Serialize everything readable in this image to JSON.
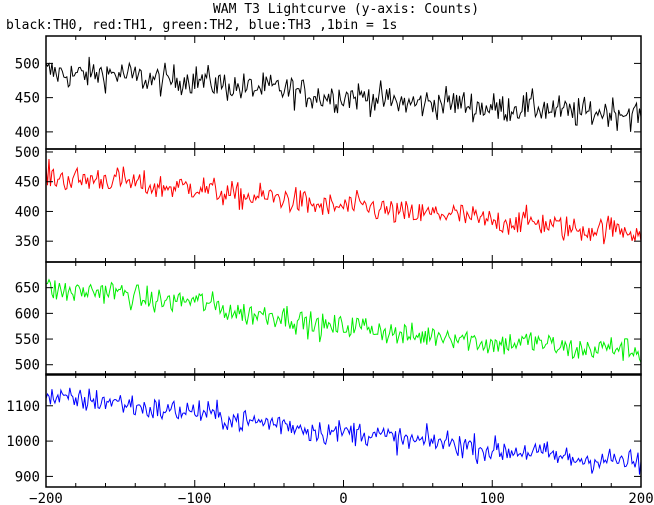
{
  "title": "WAM T3 Lightcurve (y-axis: Counts)",
  "subtitle": "black:TH0, red:TH1, green:TH2, blue:TH3 ,1bin = 1s",
  "chart_data": {
    "type": "line",
    "title": "WAM T3 Lightcurve (y-axis: Counts)",
    "subtitle": "black:TH0, red:TH1, green:TH2, blue:TH3 ,1bin = 1s",
    "xlim": [
      -200,
      200
    ],
    "x_ticks": [
      -200,
      -100,
      0,
      100,
      200
    ],
    "bin_seconds": 1,
    "grid": false,
    "legend": "subtitle",
    "panels": [
      {
        "name": "TH0",
        "color": "#000000",
        "ylim": [
          375,
          540
        ],
        "y_ticks": [
          400,
          450,
          500
        ],
        "start": 488,
        "end": 425,
        "hump": 6,
        "noise": 22,
        "x": [
          -200,
          -175,
          -150,
          -125,
          -100,
          -75,
          -50,
          -25,
          0,
          25,
          50,
          75,
          100,
          125,
          150,
          175,
          200
        ],
        "values": [
          488,
          485,
          482,
          478,
          474,
          468,
          462,
          456,
          452,
          447,
          443,
          440,
          437,
          434,
          431,
          428,
          425
        ]
      },
      {
        "name": "TH1",
        "color": "#ff0000",
        "ylim": [
          315,
          505
        ],
        "y_ticks": [
          350,
          400,
          450,
          500
        ],
        "start": 460,
        "end": 365,
        "hump": 8,
        "noise": 22,
        "x": [
          -200,
          -175,
          -150,
          -125,
          -100,
          -75,
          -50,
          -25,
          0,
          25,
          50,
          75,
          100,
          125,
          150,
          175,
          200
        ],
        "values": [
          460,
          455,
          450,
          444,
          438,
          430,
          422,
          414,
          408,
          402,
          397,
          392,
          386,
          380,
          374,
          369,
          365
        ]
      },
      {
        "name": "TH2",
        "color": "#00ee00",
        "ylim": [
          480,
          700
        ],
        "y_ticks": [
          500,
          550,
          600,
          650
        ],
        "start": 648,
        "end": 525,
        "hump": 12,
        "noise": 24,
        "x": [
          -200,
          -175,
          -150,
          -125,
          -100,
          -75,
          -50,
          -25,
          0,
          25,
          50,
          75,
          100,
          125,
          150,
          175,
          200
        ],
        "values": [
          648,
          645,
          636,
          628,
          620,
          608,
          595,
          582,
          574,
          566,
          558,
          552,
          545,
          540,
          535,
          530,
          525
        ]
      },
      {
        "name": "TH3",
        "color": "#0000ff",
        "ylim": [
          870,
          1190
        ],
        "y_ticks": [
          900,
          1000,
          1100
        ],
        "start": 1125,
        "end": 935,
        "hump": 10,
        "noise": 35,
        "x": [
          -200,
          -175,
          -150,
          -125,
          -100,
          -75,
          -50,
          -25,
          0,
          25,
          50,
          75,
          100,
          125,
          150,
          175,
          200
        ],
        "values": [
          1125,
          1118,
          1105,
          1092,
          1080,
          1065,
          1050,
          1036,
          1025,
          1014,
          1002,
          990,
          978,
          966,
          955,
          945,
          935
        ]
      }
    ]
  }
}
